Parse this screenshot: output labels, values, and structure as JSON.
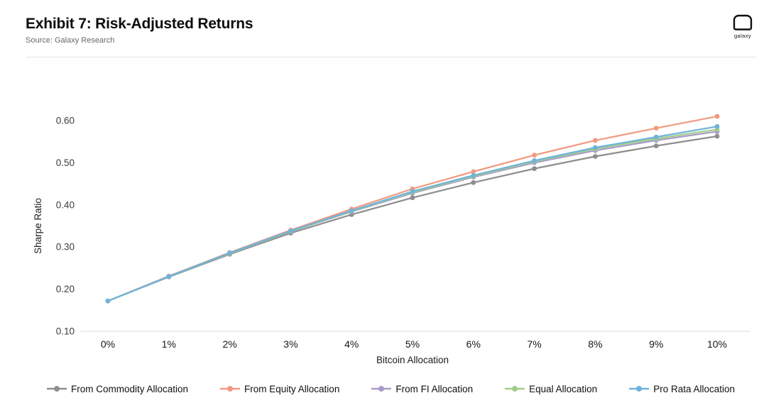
{
  "header": {
    "title": "Exhibit 7: Risk-Adjusted Returns",
    "source": "Source: Galaxy Research",
    "logo_text": "galaxy"
  },
  "chart_data": {
    "type": "line",
    "title": "Exhibit 7: Risk-Adjusted Returns",
    "xlabel": "Bitcoin Allocation",
    "ylabel": "Sharpe Ratio",
    "categories": [
      "0%",
      "1%",
      "2%",
      "3%",
      "4%",
      "5%",
      "6%",
      "7%",
      "8%",
      "9%",
      "10%"
    ],
    "ylim": [
      0.1,
      0.6
    ],
    "yticks": [
      0.1,
      0.2,
      0.3,
      0.4,
      0.5,
      0.6
    ],
    "grid": false,
    "legend_position": "bottom",
    "series": [
      {
        "name": "From Commodity Allocation",
        "color": "#8e8e8e",
        "values": [
          0.172,
          0.229,
          0.283,
          0.333,
          0.377,
          0.417,
          0.453,
          0.486,
          0.515,
          0.54,
          0.563
        ]
      },
      {
        "name": "From Equity Allocation",
        "color": "#f19a80",
        "values": [
          0.172,
          0.231,
          0.287,
          0.34,
          0.39,
          0.438,
          0.479,
          0.518,
          0.553,
          0.582,
          0.61
        ]
      },
      {
        "name": "From FI Allocation",
        "color": "#a89bc8",
        "values": [
          0.172,
          0.23,
          0.285,
          0.337,
          0.384,
          0.428,
          0.466,
          0.5,
          0.529,
          0.553,
          0.574
        ]
      },
      {
        "name": "Equal Allocation",
        "color": "#a2cd8a",
        "values": [
          0.172,
          0.23,
          0.285,
          0.337,
          0.385,
          0.43,
          0.468,
          0.503,
          0.533,
          0.557,
          0.579
        ]
      },
      {
        "name": "Pro Rata Allocation",
        "color": "#6db4da",
        "values": [
          0.172,
          0.23,
          0.286,
          0.338,
          0.386,
          0.432,
          0.47,
          0.505,
          0.536,
          0.561,
          0.586
        ]
      }
    ]
  }
}
